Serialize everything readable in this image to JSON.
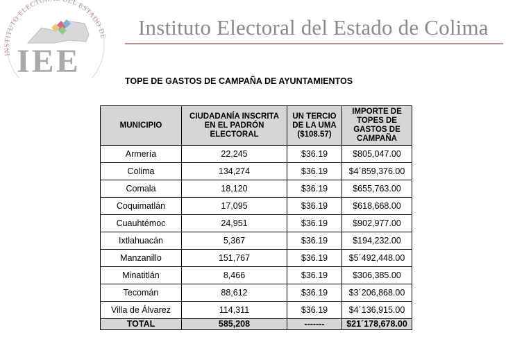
{
  "header": {
    "logo_text": "IEE",
    "logo_ring_text": "INSTITUTO ELECTORAL DEL ESTADO DE COLIMA",
    "title": "Instituto Electoral del Estado de Colima"
  },
  "document": {
    "title": "TOPE DE GASTOS DE CAMPAÑA DE AYUNTAMIENTOS"
  },
  "table": {
    "headers": [
      "MUNICIPIO",
      "CIUDADANÍA INSCRITA EN EL PADRÓN ELECTORAL",
      "UN TERCIO DE LA UMA ($108.57)",
      "IMPORTE DE TOPES DE GASTOS DE CAMPAÑA"
    ],
    "rows": [
      [
        "Armería",
        "22,245",
        "$36.19",
        "$805,047.00"
      ],
      [
        "Colima",
        "134,274",
        "$36.19",
        "$4´859,376.00"
      ],
      [
        "Comala",
        "18,120",
        "$36.19",
        "$655,763.00"
      ],
      [
        "Coquimatlán",
        "17,095",
        "$36.19",
        "$618,668.00"
      ],
      [
        "Cuauhtémoc",
        "24,951",
        "$36.19",
        "$902,977.00"
      ],
      [
        "Ixtlahuacán",
        "5,367",
        "$36.19",
        "$194,232.00"
      ],
      [
        "Manzanillo",
        "151,767",
        "$36.19",
        "$5´492,448.00"
      ],
      [
        "Minatitlán",
        "8,466",
        "$36.19",
        "$306,385.00"
      ],
      [
        "Tecomán",
        "88,612",
        "$36.19",
        "$3´206,868.00"
      ],
      [
        "Villa de Álvarez",
        "114,311",
        "$36.19",
        "$4´136,915.00"
      ]
    ],
    "total": [
      "TOTAL",
      "585,208",
      "-------",
      "$21´178,678.00"
    ]
  }
}
